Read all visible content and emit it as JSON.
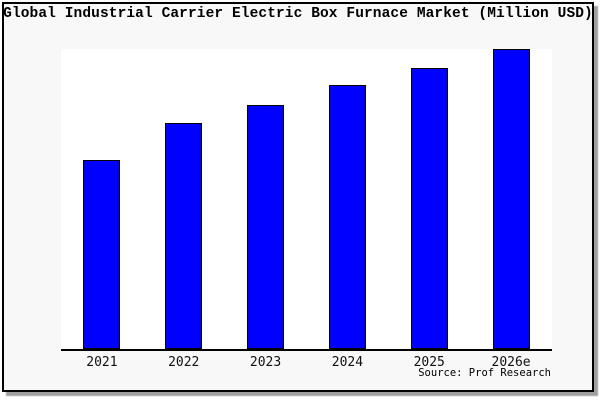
{
  "page": {
    "background": "#ffffff"
  },
  "frame": {
    "background": "#f8f8f8",
    "border_color": "#000000",
    "shadow_color": "#a0a0a0"
  },
  "source_credit": "Source: Prof Research",
  "chart_data": {
    "type": "bar",
    "title": "Global Industrial Carrier Electric Box Furnace Market (Million USD)",
    "categories": [
      "2021",
      "2022",
      "2023",
      "2024",
      "2025",
      "2026e"
    ],
    "values": [
      63.1,
      75.2,
      81.5,
      87.9,
      93.8,
      100
    ],
    "ylim": [
      0,
      100
    ],
    "xlabel": "",
    "ylabel": "",
    "grid": false,
    "y_axis_labels_visible": false,
    "values_unit": "relative bar height, tallest bar = 100 (chart shows no numeric value axis)",
    "legend": "none",
    "bar_color": "#0000ff",
    "bar_border_color": "#000000",
    "axis_color": "#000000",
    "plot_background": "#ffffff"
  }
}
